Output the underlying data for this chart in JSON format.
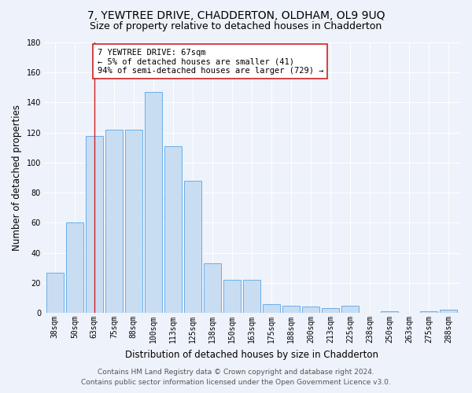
{
  "title": "7, YEWTREE DRIVE, CHADDERTON, OLDHAM, OL9 9UQ",
  "subtitle": "Size of property relative to detached houses in Chadderton",
  "xlabel": "Distribution of detached houses by size in Chadderton",
  "ylabel": "Number of detached properties",
  "categories": [
    "38sqm",
    "50sqm",
    "63sqm",
    "75sqm",
    "88sqm",
    "100sqm",
    "113sqm",
    "125sqm",
    "138sqm",
    "150sqm",
    "163sqm",
    "175sqm",
    "188sqm",
    "200sqm",
    "213sqm",
    "225sqm",
    "238sqm",
    "250sqm",
    "263sqm",
    "275sqm",
    "288sqm"
  ],
  "values": [
    27,
    60,
    118,
    122,
    122,
    147,
    111,
    88,
    33,
    22,
    22,
    6,
    5,
    4,
    3,
    5,
    0,
    1,
    0,
    1,
    2
  ],
  "bar_color": "#c9ddf2",
  "bar_edge_color": "#6aaee8",
  "vline_x": 2,
  "vline_color": "#cc2222",
  "annotation_text": "7 YEWTREE DRIVE: 67sqm\n← 5% of detached houses are smaller (41)\n94% of semi-detached houses are larger (729) →",
  "annotation_box_color": "#ffffff",
  "annotation_box_edge": "#cc2222",
  "ylim": [
    0,
    180
  ],
  "yticks": [
    0,
    20,
    40,
    60,
    80,
    100,
    120,
    140,
    160,
    180
  ],
  "footer_line1": "Contains HM Land Registry data © Crown copyright and database right 2024.",
  "footer_line2": "Contains public sector information licensed under the Open Government Licence v3.0.",
  "background_color": "#eef2fa",
  "grid_color": "#ffffff",
  "title_fontsize": 10,
  "subtitle_fontsize": 9,
  "axis_label_fontsize": 8.5,
  "tick_fontsize": 7,
  "footer_fontsize": 6.5,
  "annotation_fontsize": 7.5
}
